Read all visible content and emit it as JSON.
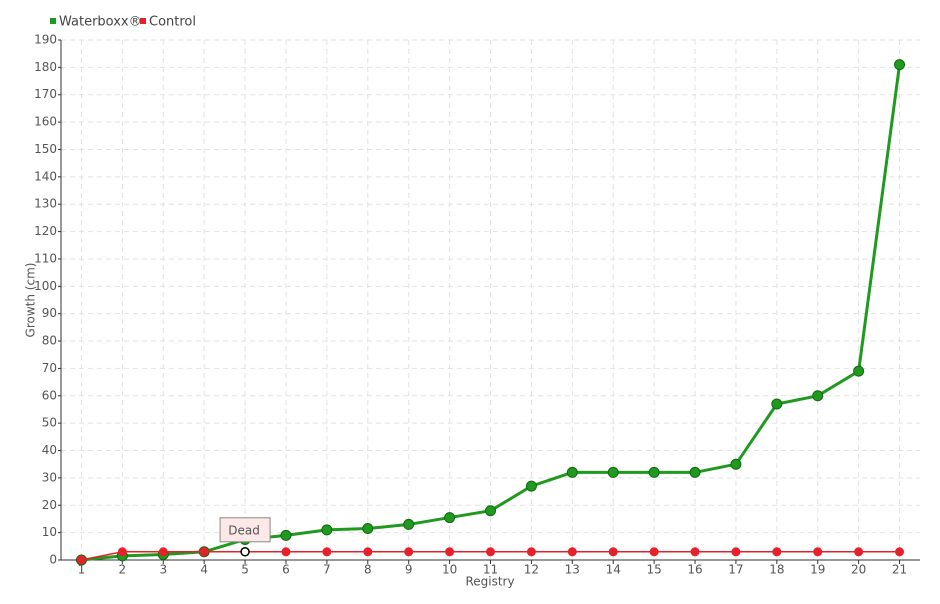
{
  "chart_data": {
    "type": "line",
    "x_label": "Registry",
    "y_label": "Growth (cm)",
    "categories": [
      "1",
      "2",
      "3",
      "4",
      "5",
      "6",
      "7",
      "8",
      "9",
      "10",
      "11",
      "12",
      "13",
      "14",
      "15",
      "16",
      "17",
      "18",
      "19",
      "20",
      "21"
    ],
    "series": [
      {
        "name": "Waterboxx®",
        "color": "#1f9a1f",
        "values": [
          0,
          1.5,
          2,
          3,
          7.5,
          9,
          11,
          11.5,
          13,
          15.5,
          18,
          27,
          32,
          32,
          32,
          32,
          35,
          57,
          60,
          69,
          181
        ]
      },
      {
        "name": "Control",
        "color": "#e8202a",
        "values": [
          0,
          3,
          3,
          3,
          3,
          3,
          3,
          3,
          3,
          3,
          3,
          3,
          3,
          3,
          3,
          3,
          3,
          3,
          3,
          3,
          3
        ]
      }
    ],
    "annotations": [
      {
        "text": "Dead",
        "x": "5",
        "y": 3
      }
    ],
    "ylim": [
      0,
      190
    ],
    "yticks": [
      0,
      10,
      20,
      30,
      40,
      50,
      60,
      70,
      80,
      90,
      100,
      110,
      120,
      130,
      140,
      150,
      160,
      170,
      180,
      190
    ],
    "grid": true,
    "legend": "top-left"
  }
}
